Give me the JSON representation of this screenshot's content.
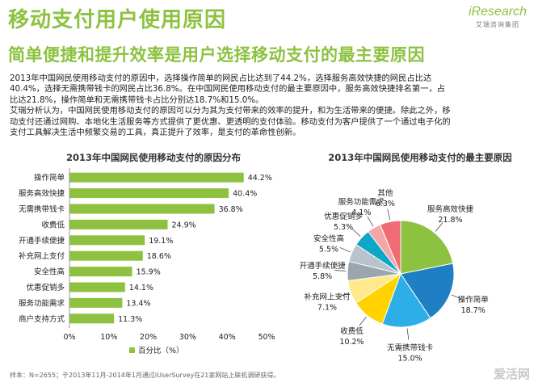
{
  "header": {
    "title": "移动支付用户使用原因",
    "subtitle": "简单便捷和提升效率是用户选择移动支付的最主要原因"
  },
  "logo": {
    "name": "iResearch",
    "tagline": "艾瑞咨询集团"
  },
  "summary": {
    "lines": [
      "2013年中国网民使用移动支付的原因中，选择操作简单的网民占比达到了44.2%，选择服务高效快捷的网民占比达",
      "40.4%，选择无需携带钱卡的网民占比36.8%。在中国网民使用移动支付的最主要原因中，服务高效快捷排名第一，占",
      "比达21.8%，操作简单和无需携带钱卡占比分别达18.7%和15.0%。",
      "艾瑞分析认为，中国网民使用移动支付的原因可以分为其为支付带来的效率的提升，和为生活带来的便捷。除此之外，移",
      "动支付还通过网购、本地化生活服务等方式提供了更优惠、更透明的支付体验。移动支付为客户提供了一个通过电子化的",
      "支付工具解决生活中频繁交易的工具，真正提升了效率，是支付的革命性创新。"
    ]
  },
  "note": "样本：N=2655；于2013年11月-2014年1月通过iUserSurvey在21家网站上联机调研获得。",
  "watermark": "爱活网",
  "colors": {
    "accent": "#8cc23f",
    "bar": "#8cc23f",
    "pie": [
      "#8cc23f",
      "#1f7fc5",
      "#2eaee6",
      "#ffd200",
      "#ffe98a",
      "#9aa5ae",
      "#b9c3cc",
      "#10a6c8",
      "#f4a6a6",
      "#f06b74"
    ]
  },
  "chart_data": [
    {
      "type": "bar",
      "orientation": "horizontal",
      "title": "2013年中国网民使用移动支付的原因分布",
      "categories": [
        "操作简单",
        "服务高效快捷",
        "无需携带钱卡",
        "收费低",
        "开通手续便捷",
        "补充网上支付",
        "安全性高",
        "优惠促销多",
        "服务功能需求",
        "商户支持方式"
      ],
      "series": [
        {
          "name": "百分比（%）",
          "values": [
            44.2,
            40.4,
            36.8,
            24.9,
            19.1,
            18.6,
            15.9,
            14.1,
            13.4,
            11.3
          ],
          "labels": [
            "44.2%",
            "40.4%",
            "36.8%",
            "24.9%",
            "19.1%",
            "18.6%",
            "15.9%",
            "14.1%",
            "13.4%",
            "11.3%"
          ]
        }
      ],
      "xlim": [
        0,
        50
      ],
      "xticks": [
        "0%",
        "10%",
        "20%",
        "30%",
        "40%",
        "50%"
      ],
      "grid": false,
      "legend": "bottom"
    },
    {
      "type": "pie",
      "title": "2013年中国网民使用移动支付的最主要原因",
      "slices": [
        {
          "label": "服务高效快捷",
          "value": 21.8,
          "text": "21.8%"
        },
        {
          "label": "操作简单",
          "value": 18.7,
          "text": "18.7%"
        },
        {
          "label": "无需携带钱卡",
          "value": 15.0,
          "text": "15.0%"
        },
        {
          "label": "收费低",
          "value": 10.2,
          "text": "10.2%"
        },
        {
          "label": "补充网上支付",
          "value": 7.1,
          "text": "7.1%"
        },
        {
          "label": "开通手续便捷",
          "value": 5.8,
          "text": "5.8%"
        },
        {
          "label": "安全性高",
          "value": 5.5,
          "text": "5.5%"
        },
        {
          "label": "优惠促销多",
          "value": 5.3,
          "text": "5.3%"
        },
        {
          "label": "服务功能需求",
          "value": 4.1,
          "text": "4.1%"
        },
        {
          "label": "其他",
          "value": 6.3,
          "text": "6.3%"
        }
      ]
    }
  ]
}
